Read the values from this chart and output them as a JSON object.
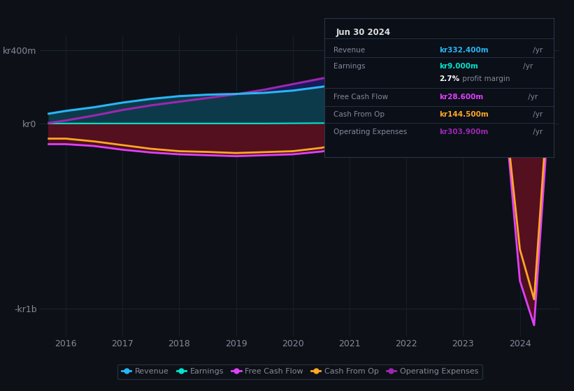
{
  "bg_color": "#0d1117",
  "plot_bg_color": "#0d1117",
  "text_color": "#888899",
  "grid_color": "#1a2535",
  "colors": {
    "revenue": "#29b6f6",
    "earnings": "#00e5cc",
    "free_cash_flow": "#e040fb",
    "cash_from_op": "#ffa726",
    "op_expenses": "#9c27b0"
  },
  "ylim": [
    -1150,
    480
  ],
  "ytick_vals": [
    -1000,
    0,
    400
  ],
  "ytick_labels": [
    "-kr1b",
    "kr0",
    "kr400m"
  ],
  "xtick_vals": [
    2016,
    2017,
    2018,
    2019,
    2020,
    2021,
    2022,
    2023,
    2024
  ],
  "years": [
    2015.7,
    2016.0,
    2016.5,
    2017.0,
    2017.5,
    2018.0,
    2018.5,
    2019.0,
    2019.5,
    2020.0,
    2020.5,
    2021.0,
    2021.25,
    2021.5,
    2021.75,
    2022.0,
    2022.25,
    2022.5,
    2022.75,
    2023.0,
    2023.25,
    2023.5,
    2023.75,
    2024.0,
    2024.25,
    2024.5
  ],
  "revenue": [
    55,
    70,
    90,
    115,
    135,
    150,
    158,
    162,
    168,
    180,
    200,
    225,
    240,
    252,
    260,
    268,
    278,
    288,
    298,
    308,
    315,
    310,
    305,
    318,
    332,
    332
  ],
  "earnings": [
    2,
    2,
    2,
    2,
    2,
    2,
    2,
    2,
    2,
    3,
    4,
    6,
    7,
    7,
    8,
    9,
    9,
    9,
    9,
    9,
    9,
    9,
    9,
    9,
    9,
    9
  ],
  "free_cash_flow": [
    -110,
    -110,
    -120,
    -140,
    -155,
    -165,
    -170,
    -175,
    -170,
    -165,
    -150,
    -125,
    -90,
    -55,
    -20,
    35,
    75,
    100,
    75,
    55,
    45,
    30,
    15,
    -850,
    -1090,
    28.6
  ],
  "cash_from_op": [
    -80,
    -80,
    -95,
    -115,
    -135,
    -148,
    -152,
    -158,
    -153,
    -148,
    -130,
    -100,
    -55,
    -18,
    15,
    80,
    120,
    142,
    108,
    88,
    78,
    50,
    38,
    -680,
    -950,
    144.5
  ],
  "op_expenses": [
    5,
    18,
    45,
    75,
    100,
    120,
    140,
    160,
    185,
    215,
    245,
    272,
    285,
    295,
    302,
    308,
    318,
    330,
    348,
    355,
    355,
    342,
    335,
    318,
    308,
    304
  ],
  "info_box": {
    "title": "Jun 30 2024",
    "rows": [
      {
        "label": "Revenue",
        "value": "kr332.400m",
        "suffix": " /yr",
        "color": "#29b6f6"
      },
      {
        "label": "Earnings",
        "value": "kr9.000m",
        "suffix": " /yr",
        "color": "#00e5cc"
      },
      {
        "label": "",
        "value": "2.7%",
        "suffix": " profit margin",
        "color": "#ffffff"
      },
      {
        "label": "Free Cash Flow",
        "value": "kr28.600m",
        "suffix": " /yr",
        "color": "#e040fb"
      },
      {
        "label": "Cash From Op",
        "value": "kr144.500m",
        "suffix": " /yr",
        "color": "#ffa726"
      },
      {
        "label": "Operating Expenses",
        "value": "kr303.900m",
        "suffix": " /yr",
        "color": "#9c27b0"
      }
    ]
  },
  "legend": [
    {
      "label": "Revenue",
      "color": "#29b6f6"
    },
    {
      "label": "Earnings",
      "color": "#00e5cc"
    },
    {
      "label": "Free Cash Flow",
      "color": "#e040fb"
    },
    {
      "label": "Cash From Op",
      "color": "#ffa726"
    },
    {
      "label": "Operating Expenses",
      "color": "#9c27b0"
    }
  ]
}
